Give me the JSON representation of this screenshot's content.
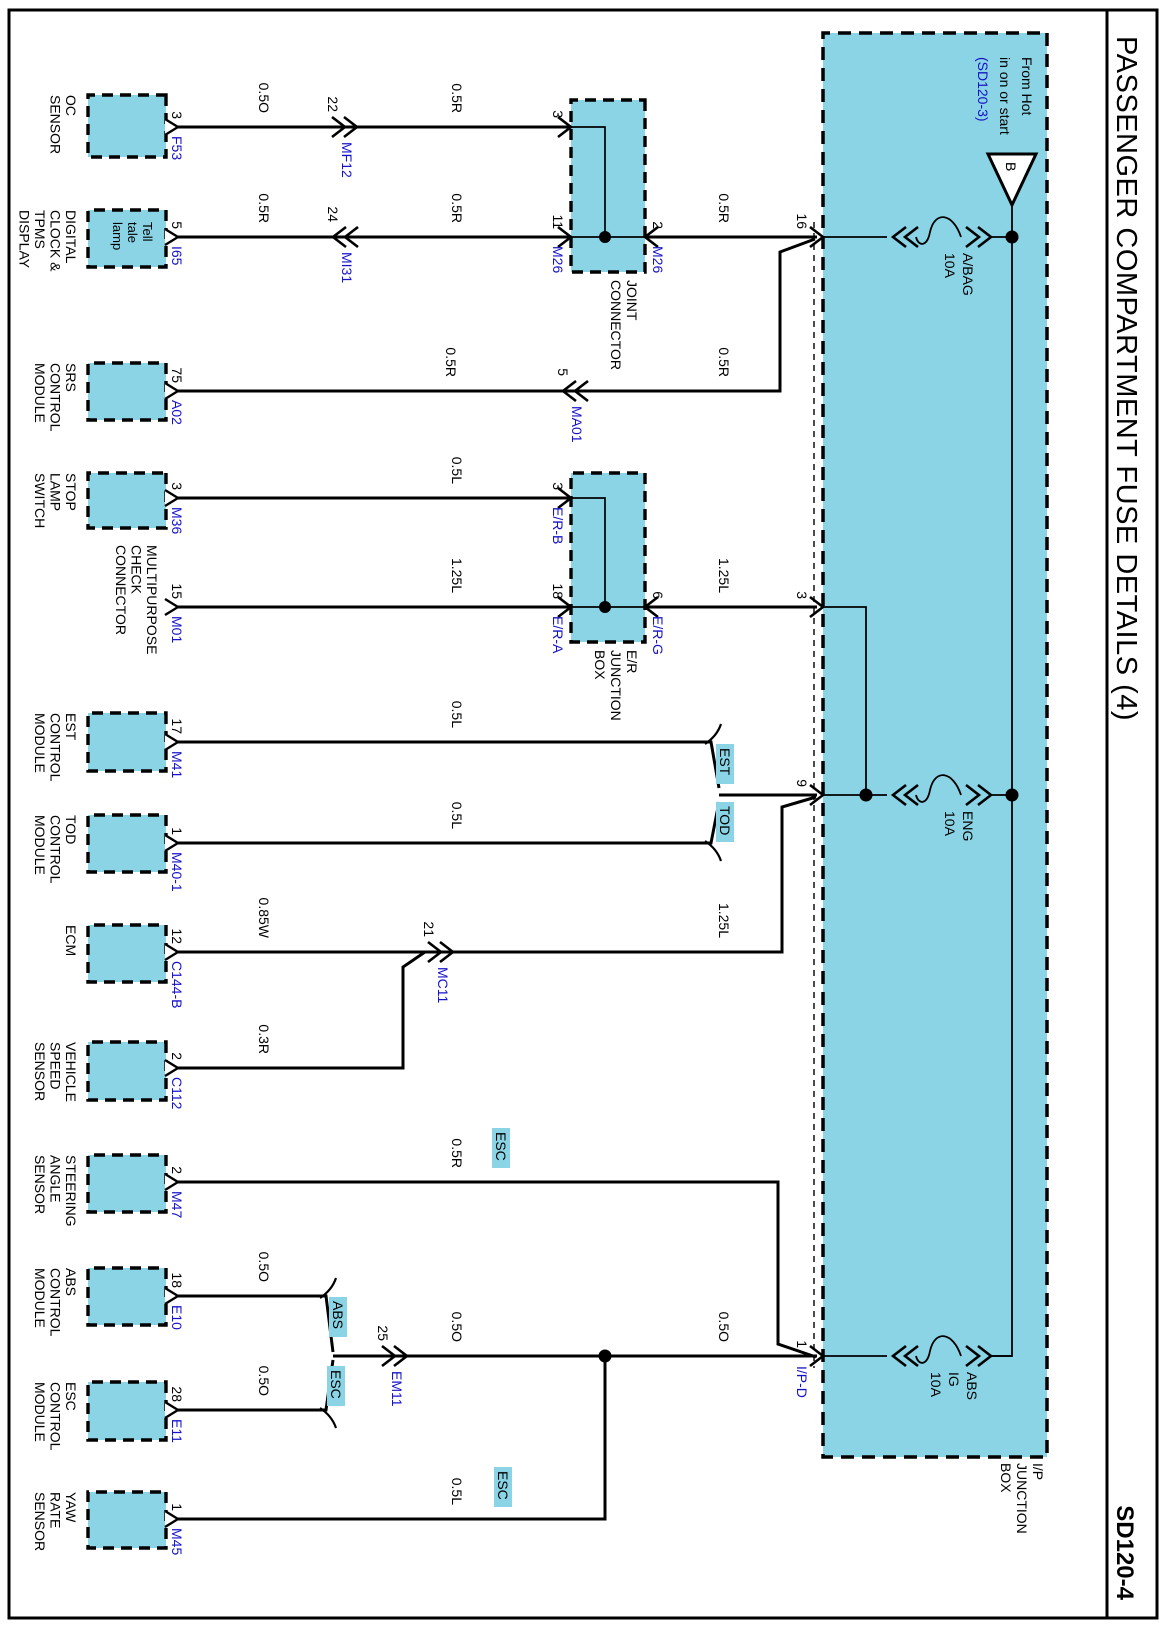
{
  "title": "PASSENGER COMPARTMENT FUSE DETAILS (4)",
  "page_code": "SD120-4",
  "colors": {
    "cyan": "#8AD4E5",
    "blue": "#1512C8"
  },
  "power": {
    "line1": "From Hot",
    "line2": "in on or start",
    "ref": "(SD120-3)",
    "terminal": "B"
  },
  "ip_box": {
    "label": [
      "I/P",
      "JUNCTION",
      "BOX"
    ],
    "fuses": [
      {
        "name": [
          "A/BAG",
          "10A"
        ]
      },
      {
        "name": [
          "ENG",
          "10A"
        ]
      },
      {
        "name": [
          "ABS",
          "IG",
          "10A"
        ]
      }
    ],
    "pins": [
      {
        "num": "16"
      },
      {
        "num": "3"
      },
      {
        "num": "9"
      },
      {
        "num": "1",
        "conn": "I/P-D"
      }
    ]
  },
  "joint_connector": {
    "label": [
      "JOINT",
      "CONNECTOR"
    ],
    "pins": [
      {
        "num": "3"
      },
      {
        "num": "11",
        "conn": "M26"
      },
      {
        "num": "2",
        "conn": "M26"
      }
    ]
  },
  "er_box": {
    "label": [
      "E/R",
      "JUNCTION",
      "BOX"
    ],
    "pins": [
      {
        "num": "3",
        "conn": "E/R-B"
      },
      {
        "num": "18",
        "conn": "E/R-A"
      },
      {
        "num": "6",
        "conn": "E/R-G"
      }
    ]
  },
  "components": [
    {
      "label": [
        "OC",
        "SENSOR"
      ],
      "pin": "3",
      "conn": "F53"
    },
    {
      "label": [
        "DIGITAL",
        "CLOCK &",
        "TPMS",
        "DISPLAY"
      ],
      "pin": "5",
      "conn": "I65",
      "inner": [
        "Tell",
        "tale",
        "lamp"
      ]
    },
    {
      "label": [
        "SRS",
        "CONTROL",
        "MODULE"
      ],
      "pin": "75",
      "conn": "A02"
    },
    {
      "label": [
        "STOP",
        "LAMP",
        "SWITCH"
      ],
      "pin": "3",
      "conn": "M36"
    },
    {
      "label": [
        "MULTIPURPOSE",
        "CHECK",
        "CONNECTOR"
      ],
      "pin": "15",
      "conn": "M01"
    },
    {
      "label": [
        "EST",
        "CONTROL",
        "MODULE"
      ],
      "pin": "17",
      "conn": "M41"
    },
    {
      "label": [
        "TOD",
        "CONTROL",
        "MODULE"
      ],
      "pin": "1",
      "conn": "M40-1"
    },
    {
      "label": [
        "ECM"
      ],
      "pin": "12",
      "conn": "C144-B"
    },
    {
      "label": [
        "VEHICLE",
        "SPEED",
        "SENSOR"
      ],
      "pin": "2",
      "conn": "C112"
    },
    {
      "label": [
        "STEERING",
        "ANGLE",
        "SENSOR"
      ],
      "pin": "2",
      "conn": "M47"
    },
    {
      "label": [
        "ABS",
        "CONTROL",
        "MODULE"
      ],
      "pin": "18",
      "conn": "E10"
    },
    {
      "label": [
        "ESC",
        "CONTROL",
        "MODULE"
      ],
      "pin": "28",
      "conn": "E11"
    },
    {
      "label": [
        "YAW",
        "RATE",
        "SENSOR"
      ],
      "pin": "1",
      "conn": "M45"
    }
  ],
  "wires": [
    {
      "labels": [
        "0.5O",
        "0.5R"
      ],
      "inline": {
        "num": "22",
        "name": "MF12"
      }
    },
    {
      "labels": [
        "0.5R",
        "0.5R"
      ],
      "inline": {
        "num": "24",
        "name": "MI31"
      }
    },
    {
      "labels": [
        "0.5R"
      ]
    },
    {
      "labels": [
        "0.5R",
        "0.5R"
      ],
      "inline": {
        "num": "5",
        "name": "MA01"
      }
    },
    {
      "labels": [
        "0.5L"
      ]
    },
    {
      "labels": [
        "1.25L"
      ]
    },
    {
      "labels": [
        "1.25L"
      ]
    },
    {
      "labels": [
        "0.5L"
      ],
      "tag": "EST"
    },
    {
      "labels": [
        "0.5L"
      ],
      "tag": "TOD"
    },
    {
      "labels": [
        "0.85W",
        "1.25L"
      ],
      "inline": {
        "num": "21",
        "name": "MC11"
      }
    },
    {
      "labels": [
        "0.3R"
      ]
    },
    {
      "labels": [
        "0.5R"
      ],
      "tag": "ESC"
    },
    {
      "labels": [
        "0.5O"
      ],
      "tag": "ABS"
    },
    {
      "labels": [
        "0.5O"
      ],
      "tag": "ESC"
    },
    {
      "labels": [
        "0.5O",
        "0.5O"
      ],
      "inline": {
        "num": "25",
        "name": "EM11"
      }
    },
    {
      "labels": [
        "0.5L"
      ],
      "tag": "ESC"
    }
  ]
}
